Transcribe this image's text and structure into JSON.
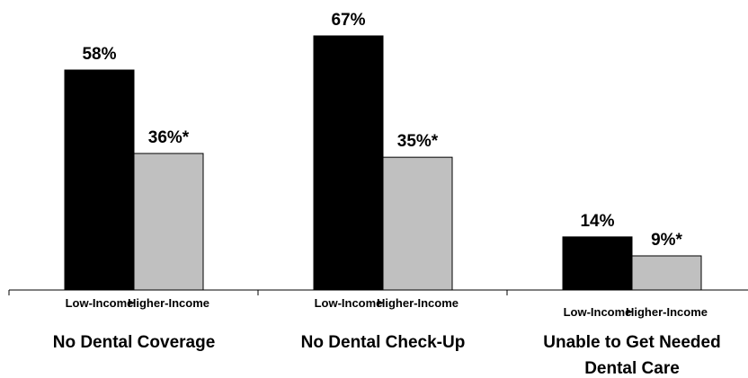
{
  "chart_data": {
    "type": "bar",
    "categories": [
      "No Dental Coverage",
      "No Dental Check-Up",
      "Unable to Get Needed Dental Care"
    ],
    "category_lines": [
      [
        "No Dental Coverage"
      ],
      [
        "No Dental Check-Up"
      ],
      [
        "Unable to Get Needed",
        "Dental Care"
      ]
    ],
    "series": [
      {
        "name": "Low-Income",
        "values": [
          58,
          67,
          14
        ],
        "labels": [
          "58%",
          "67%",
          "14%"
        ],
        "color": "#000000"
      },
      {
        "name": "Higher-Income",
        "values": [
          36,
          35,
          9
        ],
        "labels": [
          "36%*",
          "35%*",
          "9%*"
        ],
        "color": "#c0c0c0"
      }
    ],
    "ylim": [
      0,
      67
    ],
    "grid": false,
    "legend": "none"
  }
}
